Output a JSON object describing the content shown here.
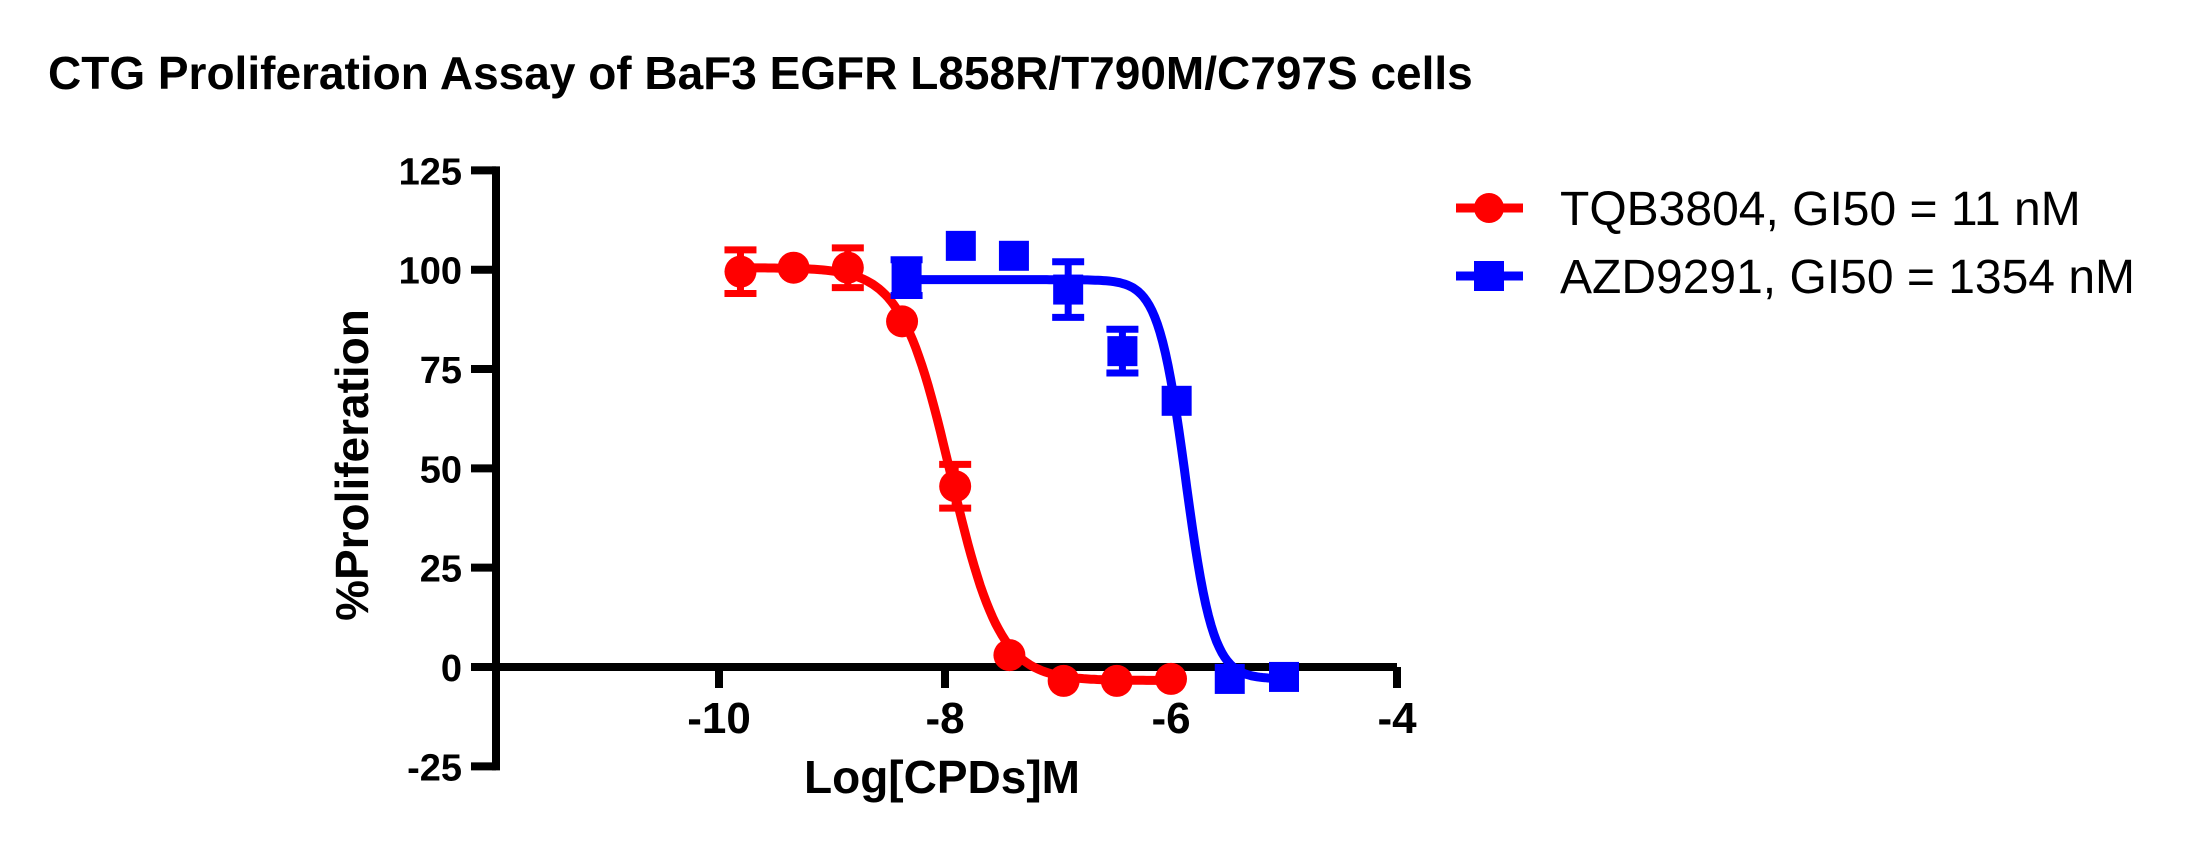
{
  "title": "CTG Proliferation Assay of BaF3 EGFR L858R/T790M/C797S cells",
  "colors": {
    "background": "#ffffff",
    "axis": "#000000",
    "tqb3804": "#ff0000",
    "azd9291": "#0000ff"
  },
  "chart_data": {
    "type": "scatter",
    "title": "CTG Proliferation Assay of BaF3 EGFR L858R/T790M/C797S cells",
    "xlabel": "Log[CPDs]M",
    "ylabel": "%Proliferation",
    "xlim": [
      -12.0,
      -3.97
    ],
    "ylim": [
      -25,
      125
    ],
    "x_ticks": [
      -10,
      -8,
      -6,
      -4
    ],
    "y_ticks": [
      125,
      100,
      75,
      50,
      25,
      0,
      -25
    ],
    "grid": false,
    "legend_position": "top-right",
    "series": [
      {
        "name": "TQB3804",
        "legend_label": "TQB3804, GI50 = 11 nM",
        "gi50_nM": 11,
        "color": "#ff0000",
        "marker": "circle",
        "x": [
          -9.81,
          -9.34,
          -8.86,
          -8.38,
          -7.91,
          -7.43,
          -6.95,
          -6.48,
          -6.0
        ],
        "y": [
          99.5,
          100.5,
          100.5,
          87,
          45.5,
          3,
          -3.5,
          -3.5,
          -3
        ],
        "yerr": [
          5.5,
          0,
          5,
          0,
          5.5,
          0,
          0,
          0,
          0
        ],
        "fit": {
          "model": "4PL",
          "top": 100.5,
          "bottom": -3.4,
          "log_gi50": -7.95,
          "hill": 2.0,
          "x_start": -9.81,
          "x_end": -6.0
        }
      },
      {
        "name": "AZD9291",
        "legend_label": "AZD9291, GI50 = 1354 nM",
        "gi50_nM": 1354,
        "color": "#0000ff",
        "marker": "square",
        "x": [
          -8.34,
          -7.86,
          -7.39,
          -6.91,
          -6.43,
          -5.95,
          -5.48,
          -5.0
        ],
        "y": [
          98,
          106,
          103.5,
          95,
          79.5,
          67,
          -3,
          -2.5
        ],
        "yerr": [
          4.5,
          0,
          0,
          7,
          5.5,
          0,
          0,
          0
        ],
        "fit": {
          "model": "4PL",
          "top": 97.5,
          "bottom": -3.0,
          "log_gi50": -5.87,
          "hill": 3.6,
          "x_start": -8.34,
          "x_end": -5.0
        }
      }
    ]
  }
}
